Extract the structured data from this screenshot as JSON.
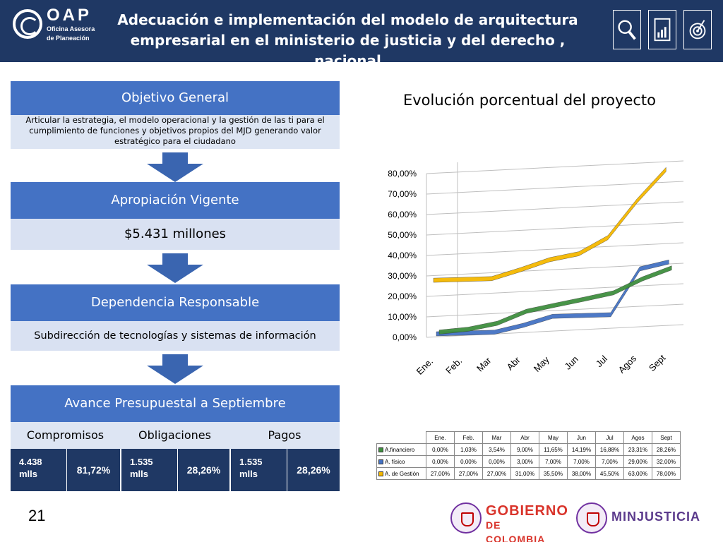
{
  "header": {
    "logo_name": "OAP",
    "logo_subtitle_1": "Oficina Asesora",
    "logo_subtitle_2": "de Planeación",
    "title_line_1": "Adecuación e implementación del modelo de arquitectura",
    "title_line_2": "empresarial en el ministerio de justicia y del derecho , nacional",
    "icons": [
      "magnifier-icon",
      "report-document-icon",
      "target-icon"
    ]
  },
  "flow": {
    "objetivo": {
      "heading": "Objetivo General",
      "text": "Articular la estrategia, el modelo operacional y la gestión de las ti para el cumplimiento de funciones y objetivos propios del MJD generando valor estratégico para el ciudadano"
    },
    "apropiacion": {
      "heading": "Apropiación Vigente",
      "value": "$5.431 millones"
    },
    "dependencia": {
      "heading": "Dependencia Responsable",
      "value": "Subdirección de tecnologías y sistemas de información"
    },
    "avance": {
      "heading": "Avance Presupuestal a Septiembre",
      "columns": [
        {
          "label": "Compromisos",
          "amount_line_1": "4.438",
          "amount_line_2": "mlls",
          "percent": "81,72%"
        },
        {
          "label": "Obligaciones",
          "amount_line_1": "1.535",
          "amount_line_2": "mlls",
          "percent": "28,26%"
        },
        {
          "label": "Pagos",
          "amount_line_1": "1.535",
          "amount_line_2": "mlls",
          "percent": "28,26%"
        }
      ]
    }
  },
  "page_number": "21",
  "footer": {
    "gobierno_line_1": "GOBIERNO",
    "gobierno_line_2": "DE COLOMBIA",
    "minjusticia": "MINJUSTICIA"
  },
  "colors": {
    "header_bg": "#1f3864",
    "box_head": "#4472c4",
    "box_body": "#d9e1f2",
    "financiero": "#3f8f3f",
    "fisico": "#4472c4",
    "gestion": "#f5b800"
  },
  "chart_data": {
    "type": "line",
    "title": "Evolución porcentual del proyecto",
    "categories": [
      "Ene.",
      "Feb.",
      "Mar",
      "Abr",
      "May",
      "Jun",
      "Jul",
      "Agos",
      "Sept"
    ],
    "y_ticks": [
      "80,00%",
      "70,00%",
      "60,00%",
      "50,00%",
      "40,00%",
      "30,00%",
      "20,00%",
      "10,00%",
      "0,00%"
    ],
    "ylim": [
      0,
      80
    ],
    "grid": true,
    "three_d": true,
    "legend": "data-table below chart",
    "series": [
      {
        "name": "A.financiero",
        "color": "#3f8f3f",
        "values": [
          0,
          1.03,
          3.54,
          9.0,
          11.65,
          14.19,
          16.88,
          23.31,
          28.26
        ],
        "labels": [
          "0,00%",
          "1,03%",
          "3,54%",
          "9,00%",
          "11,65%",
          "14,19%",
          "16,88%",
          "23,31%",
          "28,26%"
        ]
      },
      {
        "name": "A. físico",
        "color": "#4472c4",
        "values": [
          0,
          0,
          0,
          3.0,
          7.0,
          7.0,
          7.0,
          29.0,
          32.0
        ],
        "labels": [
          "0,00%",
          "0,00%",
          "0,00%",
          "3,00%",
          "7,00%",
          "7,00%",
          "7,00%",
          "29,00%",
          "32,00%"
        ]
      },
      {
        "name": "A. de Gestión",
        "color": "#f5b800",
        "values": [
          27.0,
          27.0,
          27.0,
          31.0,
          35.5,
          38.0,
          45.5,
          63.0,
          78.0
        ],
        "labels": [
          "27,00%",
          "27,00%",
          "27,00%",
          "31,00%",
          "35,50%",
          "38,00%",
          "45,50%",
          "63,00%",
          "78,00%"
        ]
      }
    ]
  }
}
